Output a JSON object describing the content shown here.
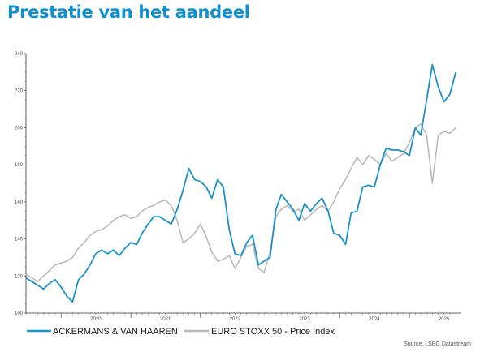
{
  "page": {
    "title": "Prestatie van het aandeel",
    "source": "Source: LSEG Datastream"
  },
  "colors": {
    "title": "#0f8fce",
    "series_1": "#1a92c9",
    "series_2": "#b7b7b7",
    "axis": "#333333"
  },
  "chart_data": {
    "type": "line",
    "title": "",
    "xlabel": "",
    "ylabel": "",
    "ylim": [
      100,
      240
    ],
    "xlim": [
      "2019-07-01",
      "2025-09-30"
    ],
    "y_ticks": [
      100,
      120,
      140,
      160,
      180,
      200,
      220,
      240
    ],
    "x_ticks": [
      "2020",
      "2021",
      "2022",
      "2023",
      "2024",
      "2025"
    ],
    "grid": false,
    "legend_position": "bottom-left",
    "series": [
      {
        "name": "ACKERMANS & VAN HAAREN",
        "color": "#1a92c9",
        "x": [
          "2019-07-01",
          "2019-08-01",
          "2019-09-01",
          "2019-10-01",
          "2019-11-01",
          "2019-12-01",
          "2020-01-01",
          "2020-02-01",
          "2020-03-01",
          "2020-04-01",
          "2020-05-01",
          "2020-06-01",
          "2020-07-01",
          "2020-08-01",
          "2020-09-01",
          "2020-10-01",
          "2020-11-01",
          "2020-12-01",
          "2021-01-01",
          "2021-02-01",
          "2021-03-01",
          "2021-04-01",
          "2021-05-01",
          "2021-06-01",
          "2021-07-01",
          "2021-08-01",
          "2021-09-01",
          "2021-10-01",
          "2021-11-01",
          "2021-12-01",
          "2022-01-01",
          "2022-02-01",
          "2022-03-01",
          "2022-04-01",
          "2022-05-01",
          "2022-06-01",
          "2022-07-01",
          "2022-08-01",
          "2022-09-01",
          "2022-10-01",
          "2022-11-01",
          "2022-12-01",
          "2023-01-01",
          "2023-02-01",
          "2023-03-01",
          "2023-04-01",
          "2023-05-01",
          "2023-06-01",
          "2023-07-01",
          "2023-08-01",
          "2023-09-01",
          "2023-10-01",
          "2023-11-01",
          "2023-12-01",
          "2024-01-01",
          "2024-02-01",
          "2024-03-01",
          "2024-04-01",
          "2024-05-01",
          "2024-06-01",
          "2024-07-01",
          "2024-08-01",
          "2024-09-01",
          "2024-10-01",
          "2024-11-01",
          "2024-12-01",
          "2025-01-01",
          "2025-02-01",
          "2025-03-01",
          "2025-04-01",
          "2025-05-01",
          "2025-06-01",
          "2025-07-01",
          "2025-08-01",
          "2025-09-01"
        ],
        "values": [
          119,
          117,
          115,
          113,
          116,
          118,
          114,
          109,
          106,
          118,
          121,
          126,
          132,
          134,
          132,
          134,
          131,
          135,
          138,
          137,
          143,
          148,
          152,
          152,
          150,
          148,
          156,
          166,
          178,
          172,
          171,
          168,
          162,
          172,
          168,
          145,
          132,
          131,
          138,
          142,
          126,
          128,
          130,
          156,
          164,
          160,
          156,
          150,
          159,
          155,
          159,
          162,
          155,
          143,
          142,
          137,
          154,
          155,
          168,
          169,
          168,
          180,
          189,
          188,
          188,
          187,
          185,
          200,
          196,
          215,
          234,
          222,
          214,
          218,
          230
        ]
      },
      {
        "name": "EURO STOXX 50 - Price Index",
        "color": "#b7b7b7",
        "x": [
          "2019-07-01",
          "2019-08-01",
          "2019-09-01",
          "2019-10-01",
          "2019-11-01",
          "2019-12-01",
          "2020-01-01",
          "2020-02-01",
          "2020-03-01",
          "2020-04-01",
          "2020-05-01",
          "2020-06-01",
          "2020-07-01",
          "2020-08-01",
          "2020-09-01",
          "2020-10-01",
          "2020-11-01",
          "2020-12-01",
          "2021-01-01",
          "2021-02-01",
          "2021-03-01",
          "2021-04-01",
          "2021-05-01",
          "2021-06-01",
          "2021-07-01",
          "2021-08-01",
          "2021-09-01",
          "2021-10-01",
          "2021-11-01",
          "2021-12-01",
          "2022-01-01",
          "2022-02-01",
          "2022-03-01",
          "2022-04-01",
          "2022-05-01",
          "2022-06-01",
          "2022-07-01",
          "2022-08-01",
          "2022-09-01",
          "2022-10-01",
          "2022-11-01",
          "2022-12-01",
          "2023-01-01",
          "2023-02-01",
          "2023-03-01",
          "2023-04-01",
          "2023-05-01",
          "2023-06-01",
          "2023-07-01",
          "2023-08-01",
          "2023-09-01",
          "2023-10-01",
          "2023-11-01",
          "2023-12-01",
          "2024-01-01",
          "2024-02-01",
          "2024-03-01",
          "2024-04-01",
          "2024-05-01",
          "2024-06-01",
          "2024-07-01",
          "2024-08-01",
          "2024-09-01",
          "2024-10-01",
          "2024-11-01",
          "2024-12-01",
          "2025-01-01",
          "2025-02-01",
          "2025-03-01",
          "2025-04-01",
          "2025-05-01",
          "2025-06-01",
          "2025-07-01",
          "2025-08-01",
          "2025-09-01"
        ],
        "values": [
          121,
          119,
          117,
          120,
          123,
          126,
          127,
          128,
          130,
          135,
          138,
          142,
          144,
          145,
          147,
          150,
          152,
          153,
          151,
          152,
          155,
          157,
          158,
          160,
          161,
          158,
          150,
          138,
          140,
          143,
          148,
          141,
          133,
          128,
          129,
          131,
          124,
          130,
          136,
          137,
          124,
          122,
          133,
          152,
          156,
          158,
          155,
          156,
          150,
          153,
          156,
          158,
          155,
          160,
          167,
          172,
          178,
          184,
          180,
          185,
          183,
          180,
          186,
          182,
          184,
          186,
          192,
          200,
          202,
          196,
          170,
          196,
          198,
          197,
          200
        ]
      }
    ]
  }
}
